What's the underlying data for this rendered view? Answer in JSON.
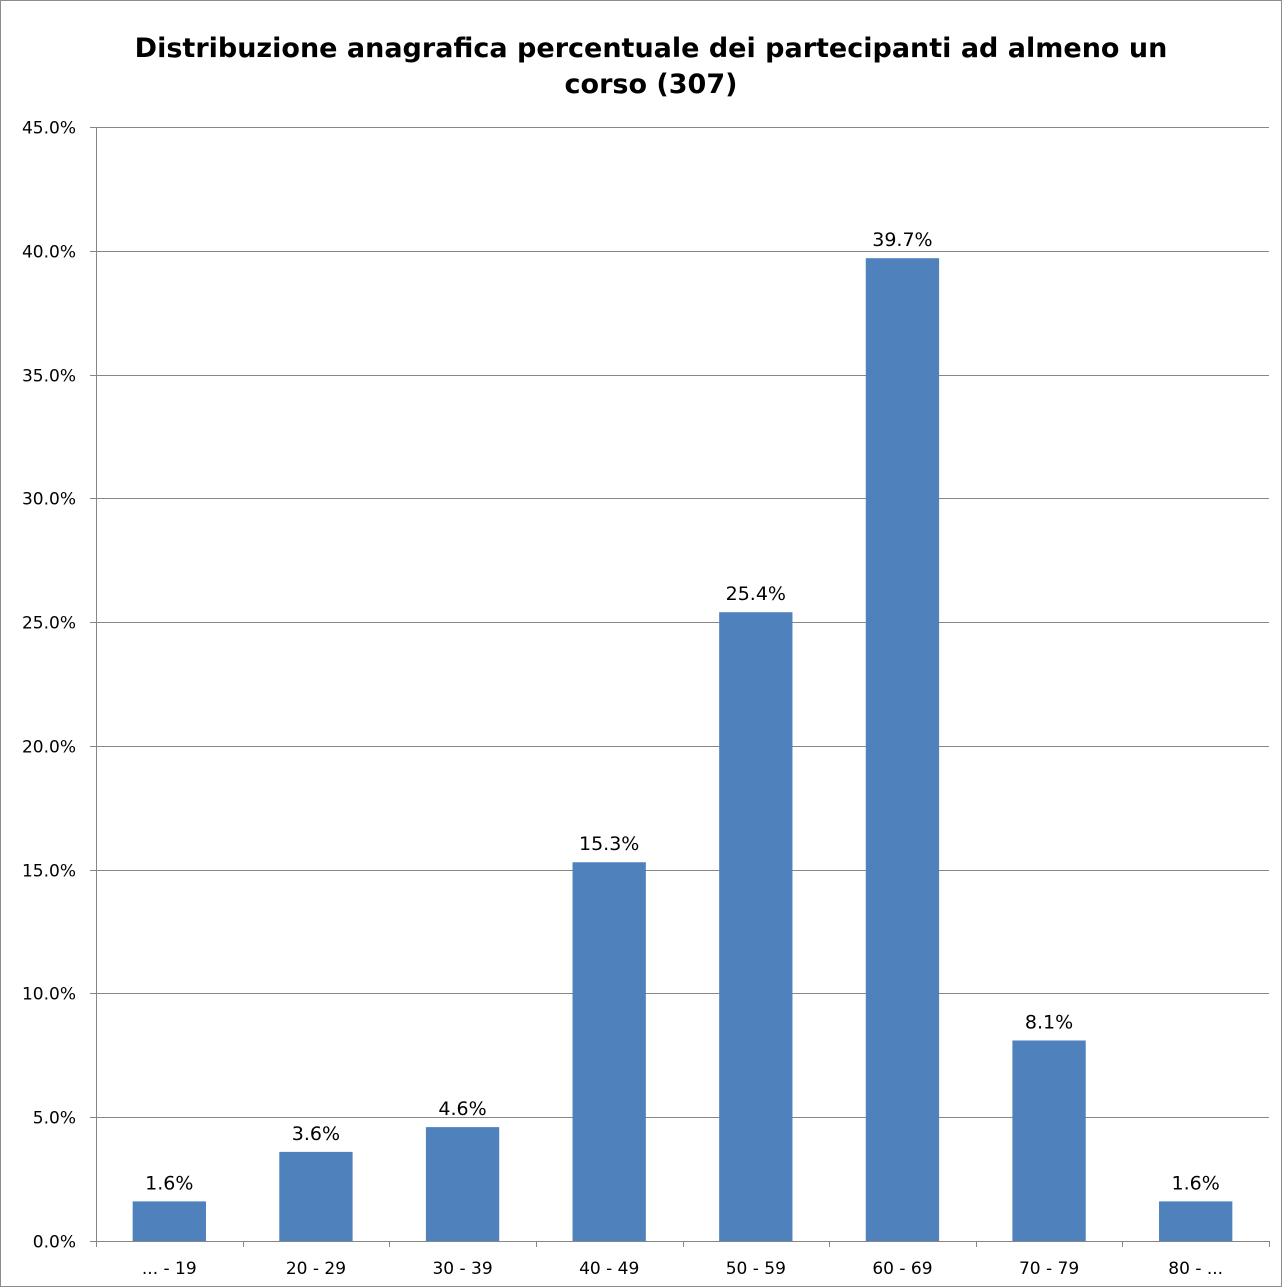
{
  "chart_data": {
    "type": "bar",
    "title_lines": [
      "Distribuzione anagrafica percentuale dei partecipanti ad almeno un",
      "corso (307)"
    ],
    "categories": [
      "... - 19",
      "20 - 29",
      "30 - 39",
      "40 - 49",
      "50 - 59",
      "60 - 69",
      "70 - 79",
      "80 - ..."
    ],
    "values": [
      1.6,
      3.6,
      4.6,
      15.3,
      25.4,
      39.7,
      8.1,
      1.6
    ],
    "data_labels": [
      "1.6%",
      "3.6%",
      "4.6%",
      "15.3%",
      "25.4%",
      "39.7%",
      "8.1%",
      "1.6%"
    ],
    "yticks": [
      0,
      5,
      10,
      15,
      20,
      25,
      30,
      35,
      40,
      45
    ],
    "ytick_labels": [
      "0.0%",
      "5.0%",
      "10.0%",
      "15.0%",
      "20.0%",
      "25.0%",
      "30.0%",
      "35.0%",
      "40.0%",
      "45.0%"
    ],
    "ylim": [
      0,
      45
    ],
    "grid": true,
    "legend": "none",
    "colors": {
      "bar": "#4f81bd",
      "grid": "#868686",
      "axis": "#868686"
    }
  }
}
